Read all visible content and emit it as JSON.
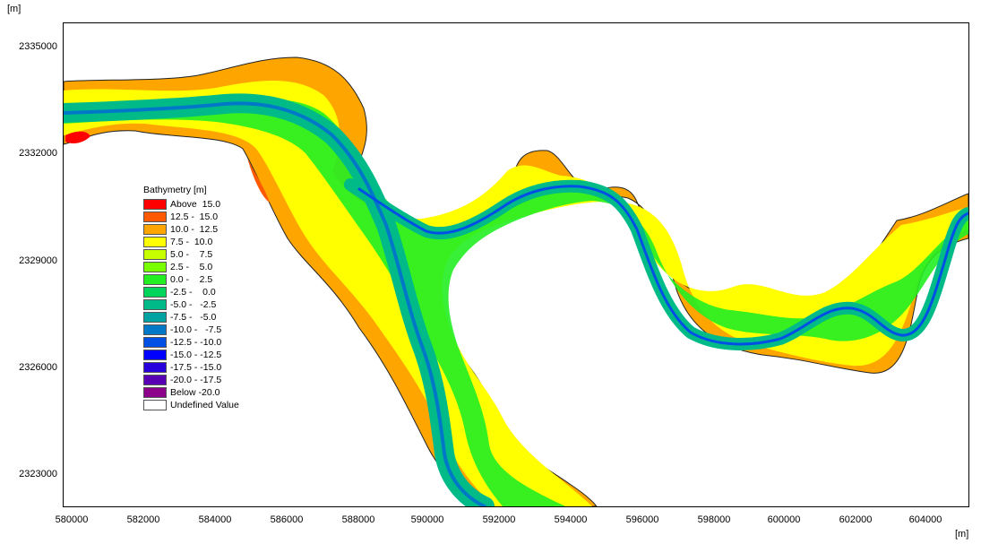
{
  "axes": {
    "x_unit": "[m]",
    "y_unit": "[m]",
    "x_ticks": [
      "580000",
      "582000",
      "584000",
      "586000",
      "588000",
      "590000",
      "592000",
      "594000",
      "596000",
      "598000",
      "600000",
      "602000",
      "604000"
    ],
    "y_ticks": [
      "2335000",
      "2332000",
      "2329000",
      "2326000",
      "2323000"
    ]
  },
  "legend": {
    "title": "Bathymetry [m]",
    "items": [
      {
        "label": "Above  15.0",
        "color": "#ff0000"
      },
      {
        "label": "12.5 -  15.0",
        "color": "#ff5a00"
      },
      {
        "label": "10.0 -  12.5",
        "color": "#ffa500"
      },
      {
        "label": "7.5 -  10.0",
        "color": "#ffff00"
      },
      {
        "label": "5.0 -    7.5",
        "color": "#c8ff00"
      },
      {
        "label": "2.5 -    5.0",
        "color": "#78ff00"
      },
      {
        "label": "0.0 -    2.5",
        "color": "#22ee22"
      },
      {
        "label": "-2.5 -    0.0",
        "color": "#00d45a"
      },
      {
        "label": "-5.0 -   -2.5",
        "color": "#00bb88"
      },
      {
        "label": "-7.5 -   -5.0",
        "color": "#00a2a2"
      },
      {
        "label": "-10.0 -   -7.5",
        "color": "#0078c8"
      },
      {
        "label": "-12.5 - -10.0",
        "color": "#0050e6"
      },
      {
        "label": "-15.0 - -12.5",
        "color": "#0000ff"
      },
      {
        "label": "-17.5 - -15.0",
        "color": "#2800dc"
      },
      {
        "label": "-20.0 - -17.5",
        "color": "#5a00b4"
      },
      {
        "label": "Below -20.0",
        "color": "#8c008c"
      },
      {
        "label": "Undefined Value",
        "color": "#ffffff"
      }
    ]
  }
}
